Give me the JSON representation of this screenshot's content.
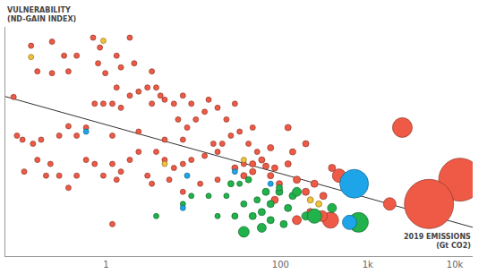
{
  "chart_data": {
    "type": "scatter",
    "marker": "bubble",
    "log": "x",
    "grid": false,
    "tick_labels": "x",
    "ylabel": [
      "VULNERABILITY",
      "(ND-GAIN INDEX)"
    ],
    "xlabel": [
      "2019 EMISSIONS",
      "(Gt CO2)"
    ],
    "xlim": [
      0.07,
      16000
    ],
    "xticks": [
      1,
      100,
      {
        "value": 1000,
        "label": "1k"
      },
      {
        "value": 10000,
        "label": "10k"
      }
    ],
    "ylim": [
      0.2,
      0.71
    ],
    "trend": {
      "x": [
        0.07,
        16000
      ],
      "y": [
        0.555,
        0.264
      ]
    },
    "series": [
      {
        "color": "#ee5a45",
        "points": [
          {
            "x": 0.087,
            "y": 0.554,
            "size": 6
          },
          {
            "x": 0.138,
            "y": 0.668,
            "size": 6
          },
          {
            "x": 0.24,
            "y": 0.607,
            "size": 6
          },
          {
            "x": 0.24,
            "y": 0.677,
            "size": 6
          },
          {
            "x": 0.37,
            "y": 0.611,
            "size": 6
          },
          {
            "x": 0.46,
            "y": 0.646,
            "size": 6
          },
          {
            "x": 0.85,
            "y": 0.664,
            "size": 6
          },
          {
            "x": 0.81,
            "y": 0.629,
            "size": 6
          },
          {
            "x": 0.71,
            "y": 0.686,
            "size": 6
          },
          {
            "x": 0.98,
            "y": 0.607,
            "size": 6
          },
          {
            "x": 1.32,
            "y": 0.646,
            "size": 6
          },
          {
            "x": 1.48,
            "y": 0.62,
            "size": 6
          },
          {
            "x": 1.87,
            "y": 0.686,
            "size": 6
          },
          {
            "x": 0.095,
            "y": 0.468,
            "size": 6
          },
          {
            "x": 0.11,
            "y": 0.459,
            "size": 6
          },
          {
            "x": 0.145,
            "y": 0.45,
            "size": 6
          },
          {
            "x": 0.18,
            "y": 0.459,
            "size": 6
          },
          {
            "x": 0.29,
            "y": 0.468,
            "size": 6
          },
          {
            "x": 0.37,
            "y": 0.489,
            "size": 6
          },
          {
            "x": 0.46,
            "y": 0.468,
            "size": 6
          },
          {
            "x": 0.59,
            "y": 0.486,
            "size": 6
          },
          {
            "x": 0.74,
            "y": 0.539,
            "size": 6
          },
          {
            "x": 0.93,
            "y": 0.539,
            "size": 6
          },
          {
            "x": 1.18,
            "y": 0.539,
            "size": 6
          },
          {
            "x": 1.48,
            "y": 0.53,
            "size": 6
          },
          {
            "x": 1.87,
            "y": 0.557,
            "size": 6
          },
          {
            "x": 2.36,
            "y": 0.566,
            "size": 6
          },
          {
            "x": 2.98,
            "y": 0.575,
            "size": 6
          },
          {
            "x": 3.76,
            "y": 0.575,
            "size": 6
          },
          {
            "x": 4.2,
            "y": 0.557,
            "size": 6
          },
          {
            "x": 3.35,
            "y": 0.539,
            "size": 6
          },
          {
            "x": 4.7,
            "y": 0.548,
            "size": 6
          },
          {
            "x": 6.0,
            "y": 0.539,
            "size": 6
          },
          {
            "x": 7.6,
            "y": 0.557,
            "size": 6
          },
          {
            "x": 9.5,
            "y": 0.539,
            "size": 6
          },
          {
            "x": 6.7,
            "y": 0.504,
            "size": 6
          },
          {
            "x": 8.5,
            "y": 0.486,
            "size": 6
          },
          {
            "x": 10.7,
            "y": 0.504,
            "size": 6
          },
          {
            "x": 13.5,
            "y": 0.521,
            "size": 6
          },
          {
            "x": 15,
            "y": 0.548,
            "size": 6
          },
          {
            "x": 19,
            "y": 0.53,
            "size": 6
          },
          {
            "x": 24,
            "y": 0.504,
            "size": 6
          },
          {
            "x": 27,
            "y": 0.468,
            "size": 6
          },
          {
            "x": 34,
            "y": 0.477,
            "size": 6
          },
          {
            "x": 43,
            "y": 0.45,
            "size": 6
          },
          {
            "x": 54,
            "y": 0.432,
            "size": 6
          },
          {
            "x": 61,
            "y": 0.414,
            "size": 7
          },
          {
            "x": 77,
            "y": 0.441,
            "size": 7
          },
          {
            "x": 86,
            "y": 0.396,
            "size": 7
          },
          {
            "x": 68,
            "y": 0.4,
            "size": 7
          },
          {
            "x": 48,
            "y": 0.405,
            "size": 7
          },
          {
            "x": 38,
            "y": 0.405,
            "size": 6
          },
          {
            "x": 21.5,
            "y": 0.45,
            "size": 6
          },
          {
            "x": 19,
            "y": 0.432,
            "size": 6
          },
          {
            "x": 17,
            "y": 0.45,
            "size": 6
          },
          {
            "x": 13.5,
            "y": 0.423,
            "size": 6
          },
          {
            "x": 9.5,
            "y": 0.414,
            "size": 6
          },
          {
            "x": 7.6,
            "y": 0.405,
            "size": 6
          },
          {
            "x": 6.0,
            "y": 0.396,
            "size": 6
          },
          {
            "x": 4.7,
            "y": 0.414,
            "size": 6
          },
          {
            "x": 3.76,
            "y": 0.432,
            "size": 6
          },
          {
            "x": 2.36,
            "y": 0.432,
            "size": 6
          },
          {
            "x": 1.87,
            "y": 0.414,
            "size": 6
          },
          {
            "x": 1.48,
            "y": 0.388,
            "size": 6
          },
          {
            "x": 1.18,
            "y": 0.405,
            "size": 6
          },
          {
            "x": 0.74,
            "y": 0.405,
            "size": 6
          },
          {
            "x": 0.59,
            "y": 0.414,
            "size": 6
          },
          {
            "x": 0.46,
            "y": 0.379,
            "size": 6
          },
          {
            "x": 0.29,
            "y": 0.379,
            "size": 6
          },
          {
            "x": 0.23,
            "y": 0.405,
            "size": 6
          },
          {
            "x": 0.115,
            "y": 0.388,
            "size": 6
          },
          {
            "x": 0.163,
            "y": 0.414,
            "size": 6
          },
          {
            "x": 0.205,
            "y": 0.379,
            "size": 6
          },
          {
            "x": 0.37,
            "y": 0.352,
            "size": 6
          },
          {
            "x": 0.93,
            "y": 0.379,
            "size": 6
          },
          {
            "x": 1.32,
            "y": 0.37,
            "size": 6
          },
          {
            "x": 2.98,
            "y": 0.379,
            "size": 6
          },
          {
            "x": 3.35,
            "y": 0.361,
            "size": 6
          },
          {
            "x": 5.3,
            "y": 0.37,
            "size": 6
          },
          {
            "x": 7.6,
            "y": 0.343,
            "size": 6
          },
          {
            "x": 12,
            "y": 0.361,
            "size": 6
          },
          {
            "x": 19,
            "y": 0.37,
            "size": 6
          },
          {
            "x": 30,
            "y": 0.396,
            "size": 7
          },
          {
            "x": 38,
            "y": 0.379,
            "size": 7
          },
          {
            "x": 48,
            "y": 0.388,
            "size": 7
          },
          {
            "x": 77,
            "y": 0.379,
            "size": 7
          },
          {
            "x": 97,
            "y": 0.361,
            "size": 7
          },
          {
            "x": 122,
            "y": 0.405,
            "size": 7
          },
          {
            "x": 138,
            "y": 0.432,
            "size": 7
          },
          {
            "x": 154,
            "y": 0.37,
            "size": 8
          },
          {
            "x": 195,
            "y": 0.343,
            "size": 8
          },
          {
            "x": 245,
            "y": 0.361,
            "size": 8
          },
          {
            "x": 4.7,
            "y": 0.459,
            "size": 6
          },
          {
            "x": 7.6,
            "y": 0.459,
            "size": 6
          },
          {
            "x": 2.36,
            "y": 0.477,
            "size": 6
          },
          {
            "x": 1.18,
            "y": 0.468,
            "size": 6
          },
          {
            "x": 30,
            "y": 0.539,
            "size": 6
          },
          {
            "x": 48,
            "y": 0.486,
            "size": 6
          },
          {
            "x": 122,
            "y": 0.486,
            "size": 7
          },
          {
            "x": 195,
            "y": 0.45,
            "size": 7
          },
          {
            "x": 310,
            "y": 0.334,
            "size": 8
          },
          {
            "x": 220,
            "y": 0.298,
            "size": 8
          },
          {
            "x": 390,
            "y": 0.396,
            "size": 8
          },
          {
            "x": 1.18,
            "y": 0.271,
            "size": 6
          },
          {
            "x": 0.33,
            "y": 0.646,
            "size": 6
          },
          {
            "x": 0.163,
            "y": 0.611,
            "size": 6
          },
          {
            "x": 3.35,
            "y": 0.611,
            "size": 6
          },
          {
            "x": 2.1,
            "y": 0.629,
            "size": 6
          },
          {
            "x": 1.32,
            "y": 0.575,
            "size": 6
          },
          {
            "x": 470,
            "y": 0.379,
            "size": 15
          },
          {
            "x": 2500,
            "y": 0.486,
            "size": 22
          },
          {
            "x": 11500,
            "y": 0.37,
            "size": 48
          },
          {
            "x": 5050,
            "y": 0.316,
            "size": 55
          },
          {
            "x": 375,
            "y": 0.28,
            "size": 18
          },
          {
            "x": 300,
            "y": 0.289,
            "size": 12
          },
          {
            "x": 1790,
            "y": 0.316,
            "size": 14
          },
          {
            "x": 154,
            "y": 0.28,
            "size": 10
          },
          {
            "x": 86,
            "y": 0.325,
            "size": 8
          }
        ]
      },
      {
        "color": "#21b24b",
        "points": [
          {
            "x": 27,
            "y": 0.361,
            "size": 7
          },
          {
            "x": 43,
            "y": 0.37,
            "size": 7
          },
          {
            "x": 68,
            "y": 0.343,
            "size": 8
          },
          {
            "x": 97,
            "y": 0.343,
            "size": 8
          },
          {
            "x": 54,
            "y": 0.325,
            "size": 7
          },
          {
            "x": 38,
            "y": 0.316,
            "size": 7
          },
          {
            "x": 77,
            "y": 0.316,
            "size": 8
          },
          {
            "x": 122,
            "y": 0.307,
            "size": 8
          },
          {
            "x": 138,
            "y": 0.334,
            "size": 8
          },
          {
            "x": 61,
            "y": 0.298,
            "size": 8
          },
          {
            "x": 30,
            "y": 0.289,
            "size": 7
          },
          {
            "x": 48,
            "y": 0.289,
            "size": 8
          },
          {
            "x": 19,
            "y": 0.289,
            "size": 6
          },
          {
            "x": 77,
            "y": 0.28,
            "size": 8
          },
          {
            "x": 109,
            "y": 0.271,
            "size": 8
          },
          {
            "x": 195,
            "y": 0.289,
            "size": 9
          },
          {
            "x": 97,
            "y": 0.352,
            "size": 7
          },
          {
            "x": 7.6,
            "y": 0.316,
            "size": 6
          },
          {
            "x": 9.5,
            "y": 0.334,
            "size": 6
          },
          {
            "x": 15,
            "y": 0.334,
            "size": 6
          },
          {
            "x": 24,
            "y": 0.334,
            "size": 6
          },
          {
            "x": 3.76,
            "y": 0.289,
            "size": 6
          },
          {
            "x": 34,
            "y": 0.361,
            "size": 6
          },
          {
            "x": 245,
            "y": 0.289,
            "size": 16
          },
          {
            "x": 785,
            "y": 0.275,
            "size": 22
          },
          {
            "x": 38,
            "y": 0.254,
            "size": 12
          },
          {
            "x": 61,
            "y": 0.263,
            "size": 10
          },
          {
            "x": 154,
            "y": 0.343,
            "size": 10
          },
          {
            "x": 390,
            "y": 0.307,
            "size": 10
          }
        ]
      },
      {
        "color": "#1ea5e9",
        "points": [
          {
            "x": 700,
            "y": 0.361,
            "size": 32
          },
          {
            "x": 620,
            "y": 0.275,
            "size": 16
          },
          {
            "x": 0.59,
            "y": 0.477,
            "size": 6
          },
          {
            "x": 8.5,
            "y": 0.379,
            "size": 6
          },
          {
            "x": 30,
            "y": 0.388,
            "size": 6
          },
          {
            "x": 7.6,
            "y": 0.307,
            "size": 6
          },
          {
            "x": 77,
            "y": 0.361,
            "size": 6
          }
        ]
      },
      {
        "color": "#f0c23c",
        "points": [
          {
            "x": 0.138,
            "y": 0.643,
            "size": 6
          },
          {
            "x": 0.93,
            "y": 0.679,
            "size": 6
          },
          {
            "x": 4.7,
            "y": 0.405,
            "size": 6
          },
          {
            "x": 38,
            "y": 0.414,
            "size": 6
          },
          {
            "x": 275,
            "y": 0.316,
            "size": 7
          },
          {
            "x": 220,
            "y": 0.325,
            "size": 7
          }
        ]
      }
    ]
  }
}
